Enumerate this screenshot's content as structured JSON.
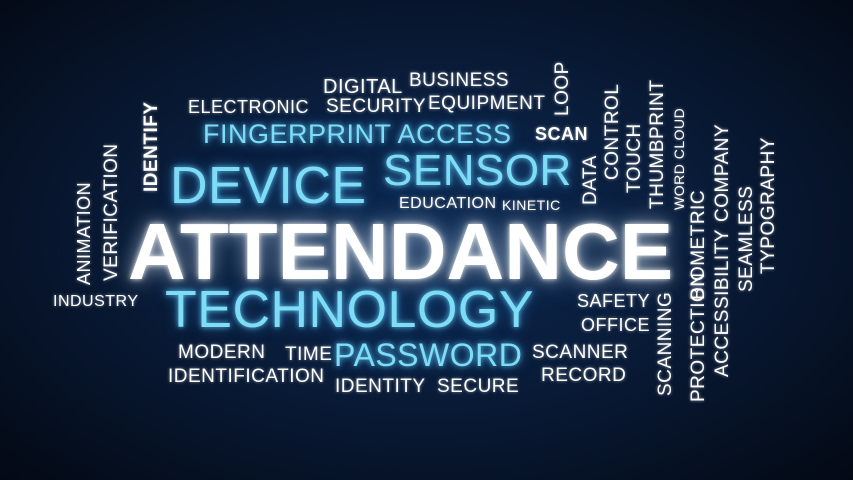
{
  "words": {
    "attendance": "ATTENDANCE",
    "technology": "TECHNOLOGY",
    "device": "DEVICE",
    "sensor": "SENSOR",
    "fingerprint_access": "FINGERPRINT ACCESS",
    "password": "PASSWORD",
    "digital": "DIGITAL",
    "business": "BUSINESS",
    "electronic": "ELECTRONIC",
    "security": "SECURITY",
    "equipment": "EQUIPMENT",
    "scan": "SCAN",
    "loop": "LOOP",
    "identify": "IDENTIFY",
    "verification": "VERIFICATION",
    "animation": "ANIMATION",
    "education": "EDUCATION",
    "kinetic": "KINETIC",
    "data": "DATA",
    "control": "CONTROL",
    "touch": "TOUCH",
    "thumbprint": "THUMBPRINT",
    "word_cloud": "WORD CLOUD",
    "company": "COMPANY",
    "biometric": "BIOMETRIC",
    "accessibility": "ACCESSIBILITY",
    "seamless": "SEAMLESS",
    "typography": "TYPOGRAPHY",
    "industry": "INDUSTRY",
    "safety": "SAFETY",
    "office": "OFFICE",
    "modern": "MODERN",
    "time": "TIME",
    "identification": "IDENTIFICATION",
    "identity": "IDENTITY",
    "secure": "SECURE",
    "scanner": "SCANNER",
    "record": "RECORD",
    "scanning": "SCANNING",
    "protection": "PROTECTION"
  }
}
